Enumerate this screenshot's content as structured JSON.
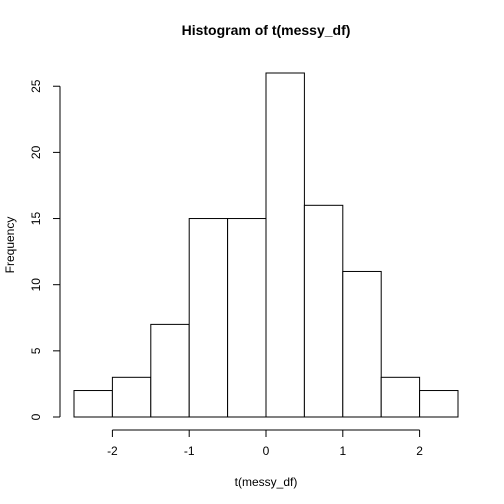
{
  "chart_data": {
    "type": "bar",
    "title": "Histogram of t(messy_df)",
    "xlabel": "t(messy_df)",
    "ylabel": "Frequency",
    "bin_edges": [
      -2.5,
      -2,
      -1.5,
      -1,
      -0.5,
      0,
      0.5,
      1,
      1.5,
      2,
      2.5
    ],
    "values": [
      2,
      3,
      7,
      15,
      15,
      26,
      16,
      11,
      3,
      2
    ],
    "xlim": [
      -2.5,
      2.5
    ],
    "ylim": [
      0,
      26
    ],
    "xticks": [
      -2,
      -1,
      0,
      1,
      2
    ],
    "xtick_labels": [
      "-2",
      "-1",
      "0",
      "1",
      "2"
    ],
    "yticks": [
      0,
      5,
      10,
      15,
      20,
      25
    ],
    "ytick_labels": [
      "0",
      "5",
      "10",
      "15",
      "20",
      "25"
    ],
    "grid": false,
    "colors": {
      "bar_fill": "#ffffff",
      "bar_stroke": "#000000"
    }
  }
}
